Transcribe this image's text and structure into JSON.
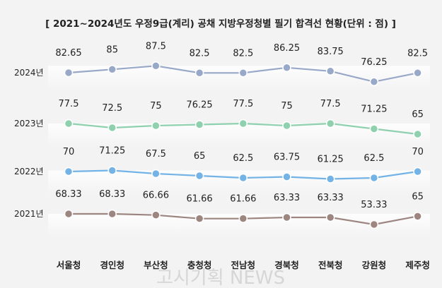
{
  "chart_data": {
    "type": "line",
    "title": "[ 2021~2024년도 우정9급(계리) 공채 지방우정청별 필기 합격선 현황(단위 : 점) ]",
    "categories": [
      "서울청",
      "경인청",
      "부산청",
      "충청청",
      "전남청",
      "경북청",
      "전북청",
      "강원청",
      "제주청"
    ],
    "series": [
      {
        "name": "2024년",
        "color": "#98a8c8",
        "values": [
          82.65,
          85,
          87.5,
          82.5,
          82.5,
          86.25,
          83.75,
          76.25,
          82.5
        ]
      },
      {
        "name": "2023년",
        "color": "#8fd0ae",
        "values": [
          77.5,
          72.5,
          75,
          76.25,
          77.5,
          75,
          77.5,
          71.25,
          65
        ]
      },
      {
        "name": "2022년",
        "color": "#74b3e6",
        "values": [
          70,
          71.25,
          67.5,
          65,
          62.5,
          63.75,
          61.25,
          62.5,
          70
        ]
      },
      {
        "name": "2021년",
        "color": "#9d8580",
        "values": [
          68.33,
          68.33,
          66.66,
          61.66,
          61.66,
          63.33,
          63.33,
          53.33,
          65
        ]
      }
    ],
    "legend_position": "left",
    "grid": false
  },
  "watermark": "고시기획 NEWS"
}
